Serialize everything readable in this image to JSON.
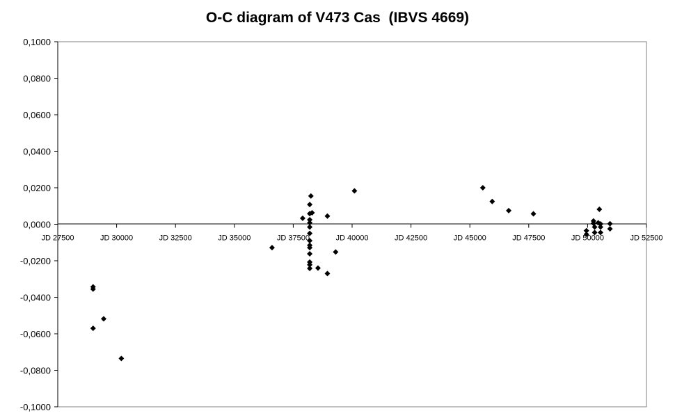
{
  "chart_data": {
    "type": "scatter",
    "title": "O-C diagram of V473 Cas  (IBVS 4669)",
    "xlabel": "",
    "ylabel": "",
    "xlim": [
      27500,
      52500
    ],
    "ylim": [
      -0.1,
      0.1
    ],
    "x_tick_labels": [
      "JD 27500",
      "JD 30000",
      "JD 32500",
      "JD 35000",
      "JD 37500",
      "JD 40000",
      "JD 42500",
      "JD 45000",
      "JD 47500",
      "JD 50000",
      "JD 52500"
    ],
    "x_ticks": [
      27500,
      30000,
      32500,
      35000,
      37500,
      40000,
      42500,
      45000,
      47500,
      50000,
      52500
    ],
    "y_tick_labels": [
      "0,1000",
      "0,0800",
      "0,0600",
      "0,0400",
      "0,0200",
      "0,0000",
      "-0,0200",
      "-0,0400",
      "-0,0600",
      "-0,0800",
      "-0,1000"
    ],
    "y_ticks": [
      0.1,
      0.08,
      0.06,
      0.04,
      0.02,
      0.0,
      -0.02,
      -0.04,
      -0.06,
      -0.08,
      -0.1
    ],
    "grid": false,
    "marker": "diamond",
    "marker_color": "#000000",
    "series": [
      {
        "points": [
          {
            "x": 29000,
            "y": -0.0343
          },
          {
            "x": 29000,
            "y": -0.0355
          },
          {
            "x": 29000,
            "y": -0.057
          },
          {
            "x": 29450,
            "y": -0.0518
          },
          {
            "x": 30200,
            "y": -0.0735
          },
          {
            "x": 36600,
            "y": -0.0128
          },
          {
            "x": 37900,
            "y": 0.0033
          },
          {
            "x": 38250,
            "y": 0.0155
          },
          {
            "x": 38200,
            "y": 0.0108
          },
          {
            "x": 38300,
            "y": 0.0063
          },
          {
            "x": 38200,
            "y": 0.0058
          },
          {
            "x": 38200,
            "y": 0.0025
          },
          {
            "x": 38200,
            "y": 0.0008
          },
          {
            "x": 38200,
            "y": -0.0015
          },
          {
            "x": 38200,
            "y": -0.005
          },
          {
            "x": 38200,
            "y": -0.009
          },
          {
            "x": 38200,
            "y": -0.0115
          },
          {
            "x": 38200,
            "y": -0.0128
          },
          {
            "x": 38200,
            "y": -0.0162
          },
          {
            "x": 38200,
            "y": -0.0207
          },
          {
            "x": 38200,
            "y": -0.0222
          },
          {
            "x": 38200,
            "y": -0.0242
          },
          {
            "x": 38550,
            "y": -0.024
          },
          {
            "x": 38950,
            "y": 0.0045
          },
          {
            "x": 38950,
            "y": -0.027
          },
          {
            "x": 39300,
            "y": -0.0152
          },
          {
            "x": 40100,
            "y": 0.0183
          },
          {
            "x": 45550,
            "y": 0.02
          },
          {
            "x": 45950,
            "y": 0.0125
          },
          {
            "x": 46650,
            "y": 0.0075
          },
          {
            "x": 47700,
            "y": 0.0057
          },
          {
            "x": 49950,
            "y": -0.0035
          },
          {
            "x": 49950,
            "y": -0.0055
          },
          {
            "x": 50250,
            "y": 0.0018
          },
          {
            "x": 50250,
            "y": 0.0005
          },
          {
            "x": 50300,
            "y": -0.0015
          },
          {
            "x": 50300,
            "y": -0.0045
          },
          {
            "x": 50500,
            "y": 0.0082
          },
          {
            "x": 50450,
            "y": 0.0008
          },
          {
            "x": 50550,
            "y": 0.0002
          },
          {
            "x": 50550,
            "y": -0.0015
          },
          {
            "x": 50550,
            "y": -0.0045
          },
          {
            "x": 50950,
            "y": 0.0003
          },
          {
            "x": 50950,
            "y": -0.0025
          }
        ]
      }
    ]
  }
}
